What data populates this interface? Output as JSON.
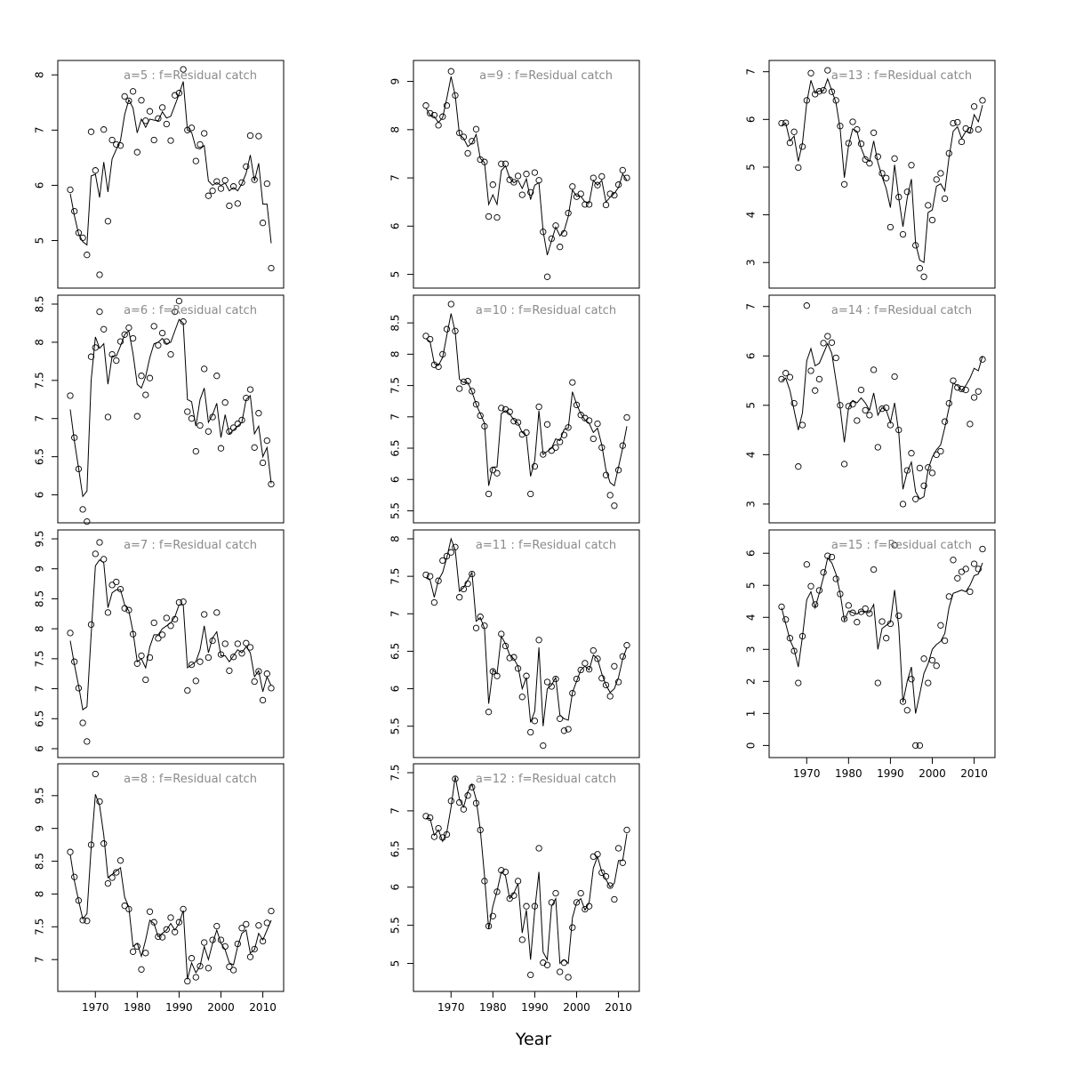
{
  "figure": {
    "xlabel": "Year"
  },
  "chart_data": [
    {
      "type": "scatter+line",
      "title": "a=5  :  f=Residual catch",
      "xlim": [
        1964,
        2012
      ],
      "ylim": [
        4.3,
        8.1
      ],
      "yticks": [
        5,
        6,
        7,
        8
      ],
      "xticks": [],
      "observed": [
        5.92,
        5.53,
        5.14,
        5.05,
        4.74,
        6.97,
        6.27,
        4.38,
        7.01,
        5.35,
        6.82,
        6.74,
        6.72,
        7.61,
        7.53,
        7.7,
        6.6,
        7.54,
        7.17,
        7.34,
        6.82,
        7.21,
        7.41,
        7.11,
        6.81,
        7.63,
        7.67,
        8.1,
        7.0,
        7.04,
        6.44,
        6.74,
        6.94,
        5.81,
        5.9,
        6.07,
        5.94,
        6.09,
        5.63,
        5.98,
        5.67,
        6.05,
        6.34,
        6.9,
        6.1,
        6.89,
        5.32,
        6.03,
        4.5
      ],
      "fitted": [
        5.85,
        5.45,
        5.12,
        4.98,
        4.92,
        6.17,
        6.2,
        5.78,
        6.42,
        5.88,
        6.48,
        6.65,
        6.81,
        7.28,
        7.55,
        7.4,
        6.95,
        7.2,
        7.05,
        7.2,
        7.18,
        7.17,
        7.33,
        7.22,
        7.25,
        7.45,
        7.65,
        7.88,
        7.0,
        6.96,
        6.68,
        6.66,
        6.72,
        6.08,
        6.0,
        6.05,
        6.0,
        6.04,
        5.9,
        5.96,
        5.9,
        6.03,
        6.22,
        6.55,
        6.08,
        6.4,
        5.66,
        5.66,
        4.95
      ]
    },
    {
      "type": "scatter+line",
      "title": "a=9  :  f=Residual catch",
      "xlim": [
        1964,
        2012
      ],
      "ylim": [
        4.9,
        9.25
      ],
      "yticks": [
        5,
        6,
        7,
        8,
        9
      ],
      "xticks": [],
      "observed": [
        8.5,
        8.34,
        8.3,
        8.09,
        8.27,
        8.5,
        9.21,
        8.71,
        7.93,
        7.85,
        7.51,
        7.76,
        8.01,
        7.38,
        7.33,
        6.2,
        6.86,
        6.18,
        7.29,
        7.29,
        6.96,
        6.91,
        7.04,
        6.65,
        7.08,
        6.7,
        7.11,
        6.95,
        5.88,
        4.95,
        5.74,
        6.01,
        5.57,
        5.85,
        6.27,
        6.82,
        6.61,
        6.67,
        6.45,
        6.45,
        7.0,
        6.85,
        7.03,
        6.44,
        6.67,
        6.64,
        6.86,
        7.16,
        7.0
      ],
      "fitted": [
        8.45,
        8.3,
        8.27,
        8.15,
        8.25,
        8.65,
        9.1,
        8.7,
        7.9,
        7.82,
        7.65,
        7.72,
        7.9,
        7.4,
        7.32,
        6.45,
        6.65,
        6.45,
        7.15,
        7.25,
        7.0,
        6.9,
        6.95,
        6.78,
        6.98,
        6.55,
        6.85,
        6.9,
        5.9,
        5.4,
        5.7,
        5.98,
        5.8,
        5.9,
        6.2,
        6.75,
        6.62,
        6.62,
        6.5,
        6.48,
        6.95,
        6.85,
        6.95,
        6.5,
        6.6,
        6.68,
        6.8,
        7.08,
        6.95
      ]
    },
    {
      "type": "scatter+line",
      "title": "a=13  :  f=Residual catch",
      "xlim": [
        1964,
        2012
      ],
      "ylim": [
        2.65,
        7.05
      ],
      "yticks": [
        3,
        4,
        5,
        6,
        7
      ],
      "xticks": [],
      "observed": [
        5.92,
        5.93,
        5.51,
        5.74,
        4.99,
        5.43,
        6.4,
        6.97,
        6.53,
        6.59,
        6.61,
        7.03,
        6.58,
        6.4,
        5.86,
        4.64,
        5.5,
        5.95,
        5.79,
        5.49,
        5.16,
        5.08,
        5.72,
        5.22,
        4.87,
        4.77,
        3.74,
        5.18,
        4.37,
        3.59,
        4.48,
        5.04,
        3.36,
        2.88,
        2.7,
        4.2,
        3.89,
        4.74,
        4.87,
        4.34,
        5.29,
        5.92,
        5.94,
        5.53,
        5.81,
        5.77,
        6.27,
        5.79,
        6.4
      ],
      "fitted": [
        5.88,
        5.92,
        5.55,
        5.65,
        5.12,
        5.5,
        6.35,
        6.82,
        6.55,
        6.6,
        6.6,
        6.85,
        6.6,
        6.35,
        5.8,
        4.78,
        5.45,
        5.8,
        5.75,
        5.4,
        5.18,
        5.12,
        5.55,
        5.1,
        4.8,
        4.55,
        4.15,
        5.05,
        4.35,
        3.75,
        4.35,
        4.75,
        3.4,
        3.05,
        3.0,
        4.05,
        4.1,
        4.6,
        4.65,
        4.5,
        5.2,
        5.75,
        5.85,
        5.6,
        5.75,
        5.72,
        6.1,
        5.95,
        6.3
      ]
    },
    {
      "type": "scatter+line",
      "title": "a=6  :  f=Residual catch",
      "xlim": [
        1964,
        2012
      ],
      "ylim": [
        5.75,
        8.5
      ],
      "yticks": [
        6.0,
        6.5,
        7.0,
        7.5,
        8.0,
        8.5
      ],
      "xticks": [],
      "observed": [
        7.3,
        6.75,
        6.34,
        5.81,
        5.65,
        7.81,
        7.93,
        8.4,
        8.17,
        7.02,
        7.84,
        7.76,
        8.01,
        8.1,
        8.19,
        8.05,
        7.03,
        7.56,
        7.31,
        7.53,
        8.21,
        7.96,
        8.12,
        8.01,
        7.84,
        8.4,
        8.54,
        8.27,
        7.09,
        7.0,
        6.57,
        6.91,
        7.65,
        6.83,
        7.02,
        7.56,
        6.61,
        7.21,
        6.83,
        6.88,
        6.93,
        6.98,
        7.27,
        7.38,
        6.62,
        7.07,
        6.42,
        6.71,
        6.14
      ],
      "fitted": [
        7.12,
        6.7,
        6.35,
        5.98,
        6.05,
        7.5,
        8.07,
        7.92,
        7.98,
        7.45,
        7.82,
        7.82,
        7.95,
        8.1,
        8.15,
        7.85,
        7.45,
        7.4,
        7.55,
        7.8,
        7.98,
        8.0,
        8.05,
        7.98,
        8.0,
        8.15,
        8.3,
        8.25,
        7.25,
        7.22,
        6.9,
        7.25,
        7.4,
        6.95,
        7.05,
        7.2,
        6.75,
        7.05,
        6.8,
        6.85,
        6.9,
        6.95,
        7.25,
        7.3,
        6.8,
        6.9,
        6.5,
        6.62,
        6.15
      ]
    },
    {
      "type": "scatter+line",
      "title": "a=10  :  f=Residual catch",
      "xlim": [
        1964,
        2012
      ],
      "ylim": [
        5.45,
        8.8
      ],
      "yticks": [
        5.5,
        6.0,
        6.5,
        7.0,
        7.5,
        8.0,
        8.5
      ],
      "xticks": [],
      "observed": [
        8.29,
        8.24,
        7.83,
        7.8,
        8.0,
        8.4,
        8.8,
        8.37,
        7.45,
        7.56,
        7.57,
        7.41,
        7.2,
        7.02,
        6.85,
        5.77,
        6.15,
        6.1,
        7.14,
        7.12,
        7.08,
        6.93,
        6.91,
        6.72,
        6.75,
        5.77,
        6.21,
        7.16,
        6.4,
        6.88,
        6.46,
        6.51,
        6.6,
        6.71,
        6.83,
        7.55,
        7.19,
        7.03,
        6.98,
        6.94,
        6.65,
        6.89,
        6.51,
        6.07,
        5.75,
        5.58,
        6.15,
        6.54,
        6.99
      ],
      "fitted": [
        8.25,
        8.2,
        7.85,
        7.82,
        7.95,
        8.3,
        8.65,
        8.35,
        7.6,
        7.55,
        7.55,
        7.4,
        7.2,
        7.05,
        6.9,
        5.9,
        6.2,
        6.2,
        7.05,
        7.1,
        7.05,
        6.95,
        6.9,
        6.75,
        6.7,
        6.05,
        6.3,
        7.1,
        6.4,
        6.45,
        6.5,
        6.65,
        6.62,
        6.8,
        6.82,
        7.4,
        7.2,
        7.05,
        6.95,
        6.9,
        6.75,
        6.82,
        6.55,
        6.15,
        5.95,
        5.9,
        6.2,
        6.5,
        6.85
      ]
    },
    {
      "type": "scatter+line",
      "title": "a=14  :  f=Residual catch",
      "xlim": [
        1964,
        2012
      ],
      "ylim": [
        2.8,
        7.05
      ],
      "yticks": [
        3,
        4,
        5,
        6,
        7
      ],
      "xticks": [],
      "observed": [
        5.53,
        5.65,
        5.57,
        5.04,
        3.76,
        4.6,
        7.02,
        5.7,
        5.3,
        5.53,
        6.26,
        6.4,
        6.27,
        5.96,
        5.0,
        3.81,
        4.98,
        5.02,
        4.69,
        5.31,
        4.9,
        4.8,
        5.72,
        4.15,
        4.93,
        4.95,
        4.6,
        5.58,
        4.5,
        3.0,
        3.68,
        4.03,
        3.1,
        3.73,
        3.37,
        3.74,
        3.63,
        4.0,
        4.07,
        4.67,
        5.04,
        5.5,
        5.36,
        5.33,
        5.31,
        4.62,
        5.16,
        5.28,
        5.93
      ],
      "fitted": [
        5.5,
        5.55,
        5.3,
        4.9,
        4.5,
        4.85,
        5.9,
        6.15,
        5.8,
        5.85,
        6.05,
        6.25,
        6.05,
        5.5,
        4.95,
        4.25,
        4.95,
        5.1,
        5.05,
        5.15,
        5.05,
        4.9,
        5.25,
        4.8,
        4.95,
        4.9,
        4.65,
        5.05,
        4.45,
        3.3,
        3.65,
        3.85,
        3.25,
        3.1,
        3.15,
        3.7,
        3.95,
        4.1,
        4.2,
        4.55,
        4.95,
        5.45,
        5.4,
        5.3,
        5.4,
        5.55,
        5.75,
        5.7,
        6.0
      ]
    },
    {
      "type": "scatter+line",
      "title": "a=7  :  f=Residual catch",
      "xlim": [
        1964,
        2012
      ],
      "ylim": [
        6.0,
        9.5
      ],
      "yticks": [
        6.0,
        6.5,
        7.0,
        7.5,
        8.0,
        8.5,
        9.0,
        9.5
      ],
      "xticks": [],
      "observed": [
        7.93,
        7.45,
        7.01,
        6.43,
        6.12,
        8.07,
        9.25,
        9.44,
        9.16,
        8.27,
        8.73,
        8.78,
        8.66,
        8.34,
        8.31,
        7.91,
        7.42,
        7.55,
        7.15,
        7.52,
        8.1,
        7.84,
        7.9,
        8.18,
        8.05,
        8.16,
        8.44,
        8.45,
        6.97,
        7.4,
        7.13,
        7.45,
        8.24,
        7.52,
        7.8,
        8.27,
        7.57,
        7.75,
        7.3,
        7.53,
        7.75,
        7.59,
        7.76,
        7.69,
        7.12,
        7.29,
        6.81,
        7.25,
        7.01
      ],
      "fitted": [
        7.8,
        7.4,
        7.05,
        6.65,
        6.7,
        7.9,
        9.05,
        9.15,
        9.1,
        8.35,
        8.6,
        8.65,
        8.65,
        8.4,
        8.3,
        7.95,
        7.45,
        7.5,
        7.35,
        7.7,
        7.9,
        7.9,
        8.0,
        8.05,
        8.1,
        8.2,
        8.4,
        8.4,
        7.35,
        7.4,
        7.45,
        7.65,
        8.05,
        7.6,
        7.85,
        7.95,
        7.55,
        7.55,
        7.45,
        7.55,
        7.65,
        7.6,
        7.7,
        7.6,
        7.2,
        7.3,
        6.95,
        7.2,
        7.05
      ]
    },
    {
      "type": "scatter+line",
      "title": "a=11  :  f=Residual catch",
      "xlim": [
        1964,
        2012
      ],
      "ylim": [
        5.2,
        8.0
      ],
      "yticks": [
        5.5,
        6.0,
        6.5,
        7.0,
        7.5,
        8.0
      ],
      "xticks": [],
      "observed": [
        7.52,
        7.5,
        7.15,
        7.44,
        7.71,
        7.77,
        7.82,
        7.89,
        7.22,
        7.33,
        7.4,
        7.53,
        6.81,
        6.96,
        6.84,
        5.69,
        6.23,
        6.17,
        6.73,
        6.57,
        6.41,
        6.42,
        6.27,
        5.89,
        6.17,
        5.42,
        5.57,
        6.65,
        5.24,
        6.09,
        6.03,
        6.13,
        5.6,
        5.44,
        5.46,
        5.94,
        6.13,
        6.25,
        6.34,
        6.26,
        6.51,
        6.4,
        6.14,
        6.05,
        5.9,
        6.3,
        6.09,
        6.43,
        6.58
      ],
      "fitted": [
        7.48,
        7.45,
        7.22,
        7.45,
        7.55,
        7.75,
        8.0,
        7.85,
        7.3,
        7.35,
        7.45,
        7.55,
        6.9,
        6.95,
        6.8,
        5.8,
        6.25,
        6.2,
        6.7,
        6.6,
        6.45,
        6.4,
        6.3,
        6.0,
        6.15,
        5.55,
        5.7,
        6.55,
        5.5,
        6.0,
        6.05,
        6.15,
        5.65,
        5.6,
        5.58,
        5.95,
        6.1,
        6.25,
        6.3,
        6.25,
        6.45,
        6.4,
        6.2,
        6.05,
        5.95,
        6.0,
        6.15,
        6.4,
        6.55
      ]
    },
    {
      "type": "scatter+line",
      "title": "a=15  :  f=Residual catch",
      "xlim": [
        1964,
        2012
      ],
      "ylim": [
        -0.1,
        6.45
      ],
      "yticks": [
        0,
        1,
        2,
        3,
        4,
        5,
        6
      ],
      "xticks": [
        1970,
        1980,
        1990,
        2000,
        2010
      ],
      "observed": [
        4.33,
        3.93,
        3.35,
        2.95,
        1.95,
        3.41,
        5.65,
        4.97,
        4.4,
        4.84,
        5.4,
        5.92,
        5.88,
        5.2,
        4.73,
        3.95,
        4.37,
        4.14,
        3.85,
        4.17,
        4.27,
        4.12,
        5.49,
        1.95,
        3.87,
        3.35,
        3.8,
        6.25,
        4.05,
        1.37,
        1.1,
        2.07,
        0.0,
        0.0,
        2.71,
        1.95,
        2.66,
        2.49,
        3.75,
        3.27,
        4.65,
        5.79,
        5.22,
        5.42,
        5.51,
        4.8,
        5.67,
        5.51,
        6.13
      ],
      "fitted": [
        4.3,
        3.8,
        3.3,
        3.0,
        2.45,
        3.4,
        4.55,
        4.8,
        4.3,
        4.75,
        5.25,
        5.85,
        5.7,
        5.35,
        4.75,
        3.9,
        4.2,
        4.15,
        4.1,
        4.2,
        4.15,
        4.15,
        4.4,
        3.0,
        3.65,
        3.75,
        3.85,
        4.85,
        3.7,
        1.35,
        2.0,
        2.45,
        1.0,
        1.6,
        2.25,
        2.55,
        3.0,
        3.15,
        3.25,
        3.5,
        4.3,
        4.75,
        4.8,
        4.85,
        4.8,
        5.0,
        5.3,
        5.35,
        5.7
      ]
    },
    {
      "type": "scatter+line",
      "title": "a=8  :  f=Residual catch",
      "xlim": [
        1964,
        2012
      ],
      "ylim": [
        6.65,
        9.85
      ],
      "yticks": [
        7.0,
        7.5,
        8.0,
        8.5,
        9.0,
        9.5
      ],
      "xticks": [
        1970,
        1980,
        1990,
        2000,
        2010
      ],
      "observed": [
        8.64,
        8.26,
        7.9,
        7.6,
        7.59,
        8.75,
        9.83,
        9.41,
        8.77,
        8.16,
        8.25,
        8.33,
        8.51,
        7.82,
        7.77,
        7.12,
        7.2,
        6.85,
        7.1,
        7.73,
        7.57,
        7.35,
        7.34,
        7.46,
        7.64,
        7.42,
        7.57,
        7.77,
        6.67,
        7.02,
        6.73,
        6.9,
        7.26,
        6.87,
        7.3,
        7.51,
        7.3,
        7.2,
        6.89,
        6.84,
        7.24,
        7.48,
        7.54,
        7.04,
        7.16,
        7.52,
        7.28,
        7.56,
        7.74
      ],
      "fitted": [
        8.6,
        8.2,
        7.9,
        7.62,
        7.7,
        8.7,
        9.52,
        9.35,
        8.9,
        8.25,
        8.3,
        8.35,
        8.4,
        7.95,
        7.8,
        7.2,
        7.25,
        7.05,
        7.3,
        7.6,
        7.55,
        7.35,
        7.4,
        7.45,
        7.55,
        7.45,
        7.55,
        7.75,
        6.7,
        6.95,
        6.8,
        6.9,
        7.2,
        7.0,
        7.25,
        7.45,
        7.25,
        7.15,
        6.95,
        6.92,
        7.2,
        7.4,
        7.45,
        7.1,
        7.15,
        7.4,
        7.3,
        7.45,
        7.6
      ]
    },
    {
      "type": "scatter+line",
      "title": "a=12  :  f=Residual catch",
      "xlim": [
        1964,
        2012
      ],
      "ylim": [
        4.75,
        7.5
      ],
      "yticks": [
        5.0,
        5.5,
        6.0,
        6.5,
        7.0,
        7.5
      ],
      "xticks": [
        1970,
        1980,
        1990,
        2000,
        2010
      ],
      "observed": [
        6.93,
        6.91,
        6.66,
        6.77,
        6.65,
        6.69,
        7.13,
        7.42,
        7.11,
        7.02,
        7.2,
        7.31,
        7.1,
        6.75,
        6.08,
        5.49,
        5.62,
        5.94,
        6.22,
        6.2,
        5.85,
        5.89,
        6.08,
        5.31,
        5.75,
        4.85,
        5.75,
        6.51,
        5.01,
        4.98,
        5.8,
        5.92,
        4.89,
        5.01,
        4.82,
        5.47,
        5.8,
        5.92,
        5.71,
        5.75,
        6.4,
        6.43,
        6.19,
        6.14,
        6.02,
        5.84,
        6.51,
        6.32,
        6.75
      ],
      "fitted": [
        6.9,
        6.9,
        6.68,
        6.75,
        6.6,
        6.72,
        7.05,
        7.45,
        7.15,
        7.05,
        7.25,
        7.35,
        7.15,
        6.75,
        6.15,
        5.45,
        5.75,
        5.95,
        6.2,
        6.15,
        5.85,
        5.92,
        6.05,
        5.4,
        5.7,
        5.05,
        5.7,
        6.2,
        5.15,
        5.05,
        5.75,
        5.85,
        5.0,
        5.05,
        5.0,
        5.6,
        5.8,
        5.85,
        5.7,
        5.8,
        6.25,
        6.4,
        6.2,
        6.1,
        6.0,
        6.05,
        6.35,
        6.35,
        6.7
      ]
    }
  ]
}
